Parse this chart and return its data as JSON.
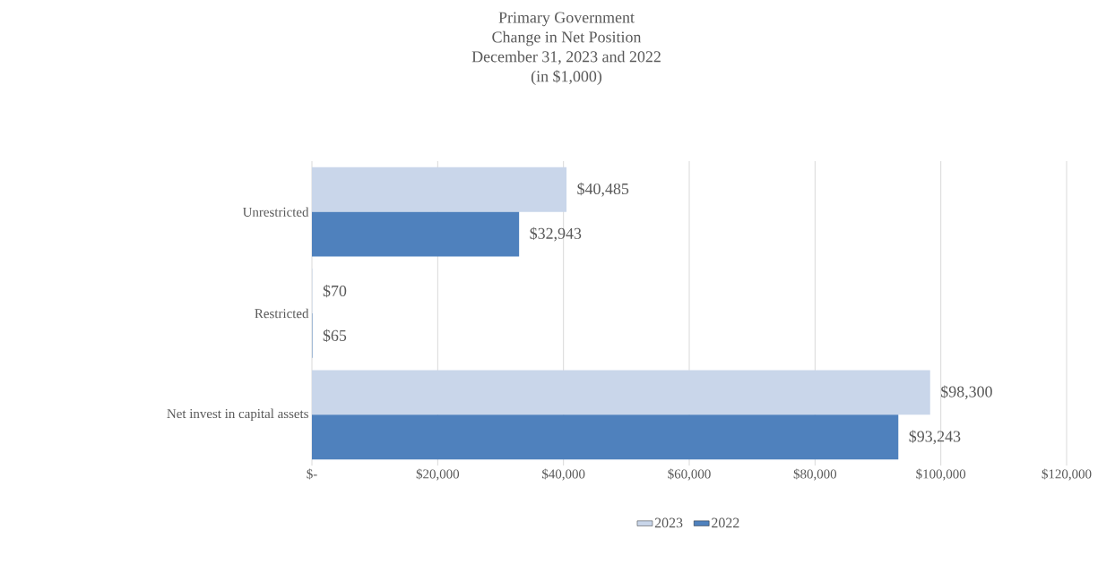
{
  "chart_data": {
    "type": "bar",
    "orientation": "horizontal",
    "title": "Primary Government",
    "subtitle": "Change in Net Position",
    "annotations": [
      "December 31, 2023 and 2022",
      "(in $1,000)"
    ],
    "categories": [
      "Unrestricted",
      "Restricted",
      "Net invest in capital assets"
    ],
    "series": [
      {
        "name": "2023",
        "color": "#c9d6ea",
        "values": [
          40485,
          70,
          98300
        ],
        "value_labels": [
          "$40,485",
          "$70",
          "$98,300"
        ]
      },
      {
        "name": "2022",
        "color": "#4f81bd",
        "values": [
          32943,
          65,
          93243
        ],
        "value_labels": [
          "$32,943",
          "$65",
          "$93,243"
        ]
      }
    ],
    "xlim": [
      0,
      120000
    ],
    "xticks": [
      {
        "value": 0,
        "label": "$-"
      },
      {
        "value": 20000,
        "label": "$20,000"
      },
      {
        "value": 40000,
        "label": "$40,000"
      },
      {
        "value": 60000,
        "label": "$60,000"
      },
      {
        "value": 80000,
        "label": "$80,000"
      },
      {
        "value": 100000,
        "label": "$100,000"
      },
      {
        "value": 120000,
        "label": "$120,000"
      }
    ],
    "grid": "x",
    "legend": "bottom"
  }
}
